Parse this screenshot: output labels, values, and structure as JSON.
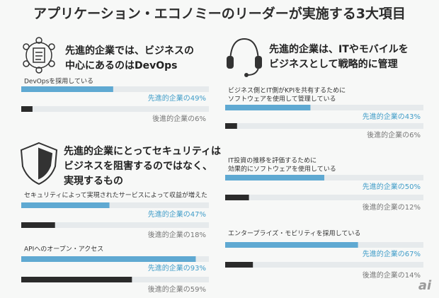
{
  "title": "アプリケーション・エコノミーのリーダーが実施する3大項目",
  "sections": [
    {
      "heading": [
        "先進的企業では、ビジネスの",
        "中心にあるのはDevOps"
      ]
    },
    {
      "heading": [
        "先進的企業にとってセキュリティは",
        "ビジネスを阻害するのではなく、",
        "実現するもの"
      ]
    },
    {
      "heading": [
        "先進的企業は、ITやモバイルを",
        "ビジネスとして戦略的に管理"
      ]
    }
  ],
  "watermark": "ai",
  "chart_data": [
    {
      "type": "bar",
      "title": [
        "DevOpsを採用している"
      ],
      "values": [
        49,
        6
      ],
      "value_labels": [
        "先進的企業の49%",
        "後進的企業の6%"
      ],
      "colors": [
        "#5fa9d2",
        "#2b2b2b"
      ],
      "xlim": [
        0,
        100
      ]
    },
    {
      "type": "bar",
      "title": [
        "セキュリティによって実現されたサービスによって収益が増えた"
      ],
      "values": [
        47,
        18
      ],
      "value_labels": [
        "先進的企業の47%",
        "後進的企業の18%"
      ],
      "colors": [
        "#5fa9d2",
        "#2b2b2b"
      ],
      "xlim": [
        0,
        100
      ]
    },
    {
      "type": "bar",
      "title": [
        "APIへのオープン・アクセス"
      ],
      "values": [
        93,
        59
      ],
      "value_labels": [
        "先進的企業の93%",
        "後進的企業の59%"
      ],
      "colors": [
        "#5fa9d2",
        "#2b2b2b"
      ],
      "xlim": [
        0,
        100
      ]
    },
    {
      "type": "bar",
      "title": [
        "ビジネス側とIT側がKPIを共有するために",
        "ソフトウェアを使用して管理している"
      ],
      "values": [
        43,
        6
      ],
      "value_labels": [
        "先進的企業の43%",
        "後進的企業の6%"
      ],
      "colors": [
        "#5fa9d2",
        "#2b2b2b"
      ],
      "xlim": [
        0,
        100
      ]
    },
    {
      "type": "bar",
      "title": [
        "IT投資の推移を評価するために",
        "効果的にソフトウェアを使用している"
      ],
      "values": [
        50,
        12
      ],
      "value_labels": [
        "先進的企業の50%",
        "後進的企業の12%"
      ],
      "colors": [
        "#5fa9d2",
        "#2b2b2b"
      ],
      "xlim": [
        0,
        100
      ]
    },
    {
      "type": "bar",
      "title": [
        "エンタープライズ・モビリティを採用している"
      ],
      "values": [
        67,
        14
      ],
      "value_labels": [
        "先進的企業の67%",
        "後進的企業の14%"
      ],
      "colors": [
        "#5fa9d2",
        "#2b2b2b"
      ],
      "xlim": [
        0,
        100
      ]
    }
  ]
}
